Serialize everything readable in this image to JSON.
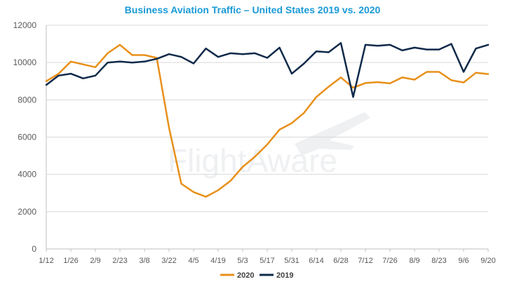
{
  "chart_data": {
    "type": "line",
    "title": "Business Aviation Traffic – United States 2019 vs. 2020",
    "xlabel": "",
    "ylabel": "",
    "ylim": [
      0,
      12000
    ],
    "yticks": [
      0,
      2000,
      4000,
      6000,
      8000,
      10000,
      12000
    ],
    "x_tick_labels": [
      "1/12",
      "1/26",
      "2/9",
      "2/23",
      "3/8",
      "3/22",
      "4/5",
      "4/19",
      "5/3",
      "5/17",
      "5/31",
      "6/14",
      "6/28",
      "7/12",
      "7/26",
      "8/9",
      "8/23",
      "9/6",
      "9/20"
    ],
    "categories": [
      "1/12",
      "1/19",
      "1/26",
      "2/2",
      "2/9",
      "2/16",
      "2/23",
      "3/1",
      "3/8",
      "3/15",
      "3/22",
      "3/29",
      "4/5",
      "4/12",
      "4/19",
      "4/26",
      "5/3",
      "5/10",
      "5/17",
      "5/24",
      "5/31",
      "6/7",
      "6/14",
      "6/21",
      "6/28",
      "7/5",
      "7/12",
      "7/19",
      "7/26",
      "8/2",
      "8/9",
      "8/16",
      "8/23",
      "8/30",
      "9/6",
      "9/13",
      "9/20"
    ],
    "series": [
      {
        "name": "2020",
        "color": "#e8901a",
        "values": [
          9000,
          9400,
          10050,
          9900,
          9750,
          10500,
          10950,
          10400,
          10400,
          10250,
          6500,
          3500,
          3050,
          2800,
          3150,
          3650,
          4400,
          4950,
          5600,
          6400,
          6750,
          7300,
          8150,
          8700,
          9200,
          8650,
          8900,
          8950,
          8880,
          9200,
          9080,
          9500,
          9500,
          9050,
          8930,
          9450,
          9380
        ]
      },
      {
        "name": "2019",
        "color": "#0f2a4a",
        "values": [
          8800,
          9300,
          9400,
          9150,
          9300,
          10000,
          10050,
          10000,
          10050,
          10200,
          10450,
          10300,
          9950,
          10750,
          10300,
          10500,
          10450,
          10500,
          10250,
          10800,
          9400,
          9950,
          10600,
          10550,
          11050,
          8150,
          10950,
          10900,
          10950,
          10650,
          10800,
          10700,
          10700,
          11000,
          9500,
          10750,
          10950
        ]
      }
    ],
    "legend": "bottom",
    "watermark": "FlightAware",
    "watermark_icon": "airplane-icon"
  }
}
